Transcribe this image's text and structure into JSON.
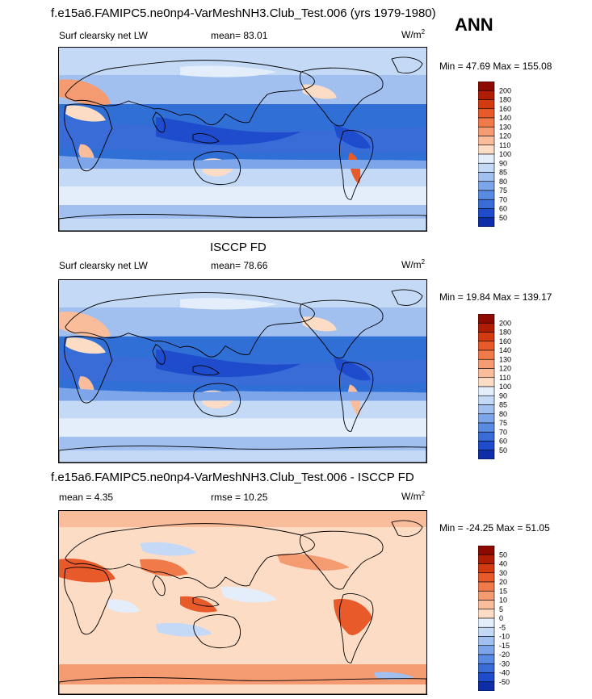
{
  "top_title": "f.e15a6.FAMIPC5.ne0np4-VarMeshNH3.Club_Test.006 (yrs 1979-1980)",
  "season": "ANN",
  "panels": [
    {
      "id": "model",
      "title": "",
      "field_label": "Surf clearsky net LW",
      "stat_text": "mean=  83.01",
      "stat2_text": "",
      "units_base": "W/m",
      "units_exp": "2",
      "minmax_text": "Min =  47.69 Max = 155.08",
      "levels": [
        "200",
        "180",
        "160",
        "140",
        "130",
        "120",
        "110",
        "100",
        "90",
        "85",
        "80",
        "75",
        "70",
        "60",
        "50"
      ]
    },
    {
      "id": "obs",
      "title": "ISCCP FD",
      "field_label": "Surf clearsky net LW",
      "stat_text": "mean=  78.66",
      "stat2_text": "",
      "units_base": "W/m",
      "units_exp": "2",
      "minmax_text": "Min =  19.84 Max = 139.17",
      "levels": [
        "200",
        "180",
        "160",
        "140",
        "130",
        "120",
        "110",
        "100",
        "90",
        "85",
        "80",
        "75",
        "70",
        "60",
        "50"
      ]
    },
    {
      "id": "diff",
      "title": "f.e15a6.FAMIPC5.ne0np4-VarMeshNH3.Club_Test.006 - ISCCP FD",
      "field_label": "",
      "stat_text": "mean =   4.35",
      "stat2_text": "rmse =  10.25",
      "units_base": "W/m",
      "units_exp": "2",
      "minmax_text": "Min = -24.25 Max =  51.05",
      "levels": [
        "50",
        "40",
        "30",
        "20",
        "15",
        "10",
        "5",
        "0",
        "-5",
        "-10",
        "-15",
        "-20",
        "-30",
        "-40",
        "-50"
      ]
    }
  ],
  "colors": {
    "abs_scale": [
      "#8c0a00",
      "#b01d05",
      "#d33a10",
      "#e85a2a",
      "#f07a4a",
      "#f59b72",
      "#f9bd9c",
      "#fddcc6",
      "#e4eefb",
      "#c4d9f6",
      "#a1c0f0",
      "#7da5ea",
      "#5a8be3",
      "#3a6cd8",
      "#1f4ccc",
      "#0d2ea8"
    ],
    "diff_scale": [
      "#8c0a00",
      "#b01d05",
      "#d33a10",
      "#e85a2a",
      "#f07a4a",
      "#f59b72",
      "#f9bd9c",
      "#fddcc6",
      "#e4eefb",
      "#c4d9f6",
      "#a1c0f0",
      "#7da5ea",
      "#5a8be3",
      "#3a6cd8",
      "#1f4ccc",
      "#0d2ea8"
    ]
  }
}
